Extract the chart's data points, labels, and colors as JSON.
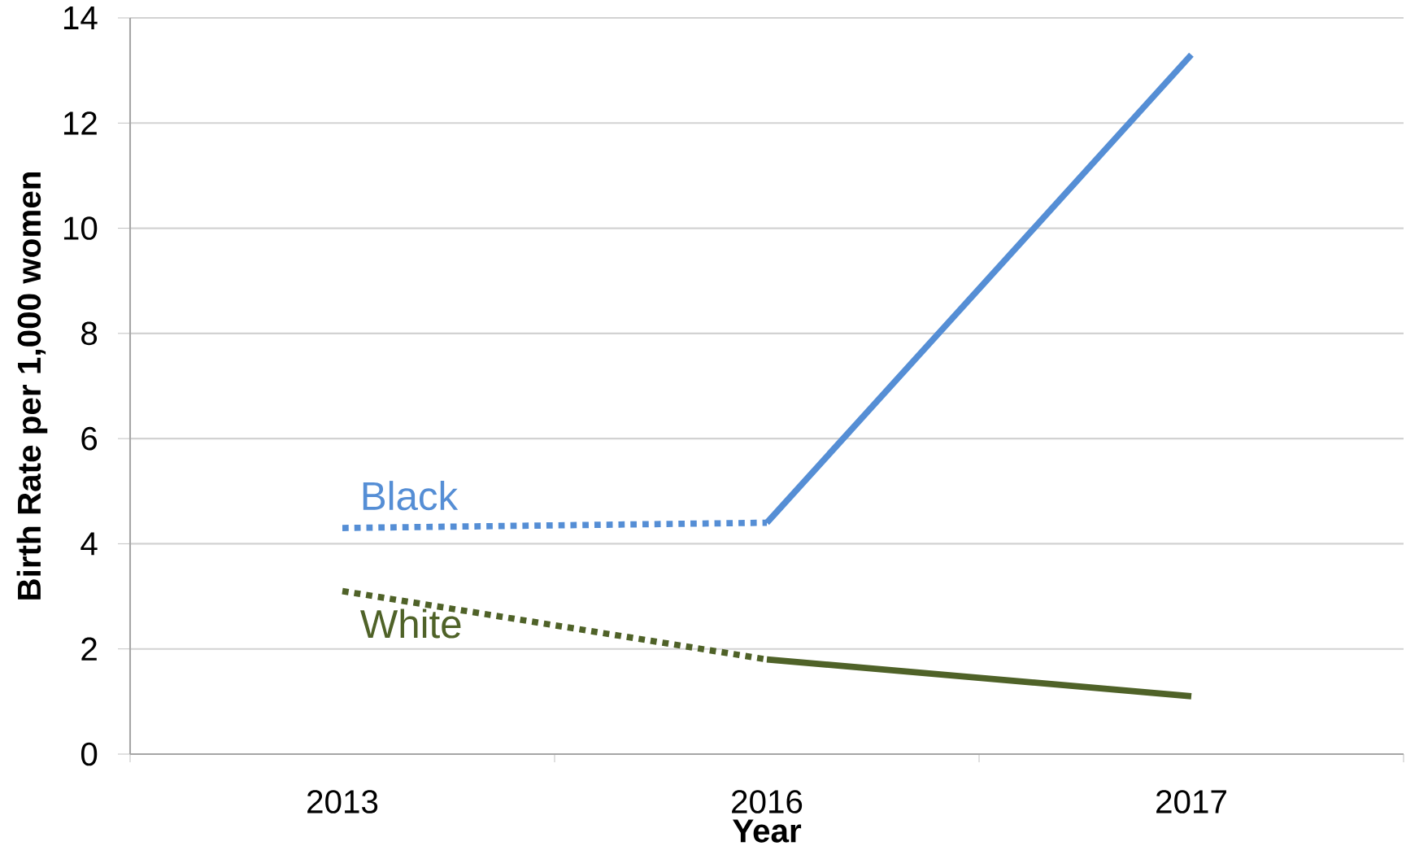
{
  "chart_data": {
    "type": "line",
    "xlabel": "Year",
    "ylabel": "Birth Rate per 1,000 women",
    "categories": [
      "2013",
      "2016",
      "2017"
    ],
    "series": [
      {
        "name": "Black",
        "color": "#558ed5",
        "values": [
          4.3,
          4.4,
          null
        ],
        "line_style": "dotted"
      },
      {
        "color": "#558ed5",
        "values": [
          null,
          4.4,
          13.3
        ],
        "line_style": "solid"
      },
      {
        "name": "White",
        "color": "#4f6228",
        "values": [
          3.1,
          1.8,
          null
        ],
        "line_style": "dotted"
      },
      {
        "color": "#4f6228",
        "values": [
          null,
          1.8,
          1.1
        ],
        "line_style": "solid"
      }
    ],
    "ylim": [
      0,
      14
    ],
    "yticks": [
      0,
      2,
      4,
      6,
      8,
      10,
      12,
      14
    ],
    "grid": "y",
    "marker": "none"
  }
}
